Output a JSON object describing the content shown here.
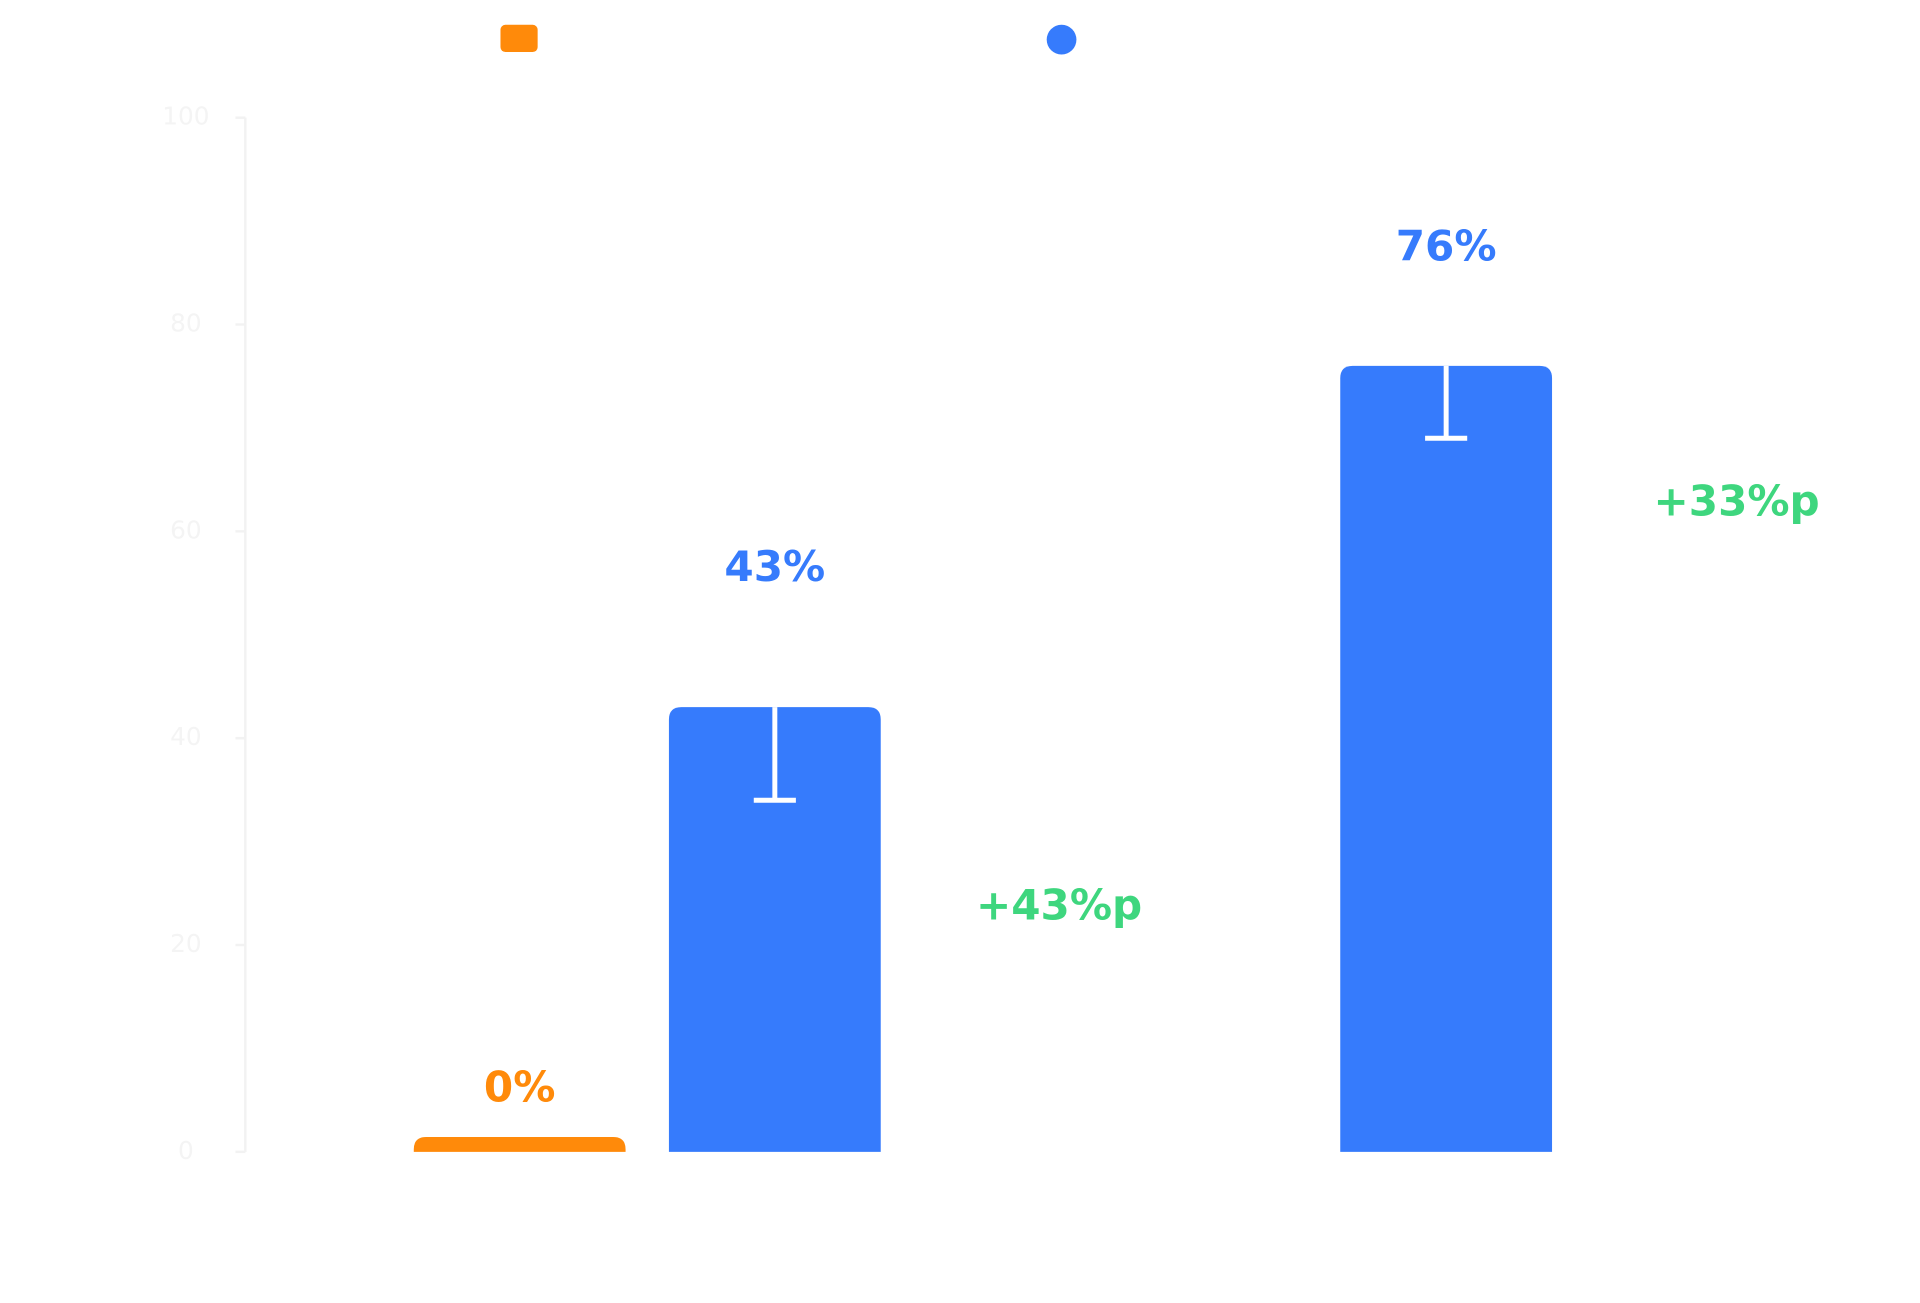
{
  "chart_data": {
    "type": "bar",
    "categories": [
      null,
      null
    ],
    "series": [
      {
        "color": "#ff8a0a",
        "values": [
          0,
          null
        ],
        "value_labels": [
          "0%",
          null
        ]
      },
      {
        "color": "#367bfc",
        "values": [
          43,
          76
        ],
        "value_labels": [
          "43%",
          "76%"
        ],
        "errors": [
          9,
          7
        ]
      }
    ],
    "annotations": [
      {
        "text": "+43%p",
        "color": "#3ed67e"
      },
      {
        "text": "+33%p",
        "color": "#3ed67e"
      }
    ],
    "ylim": [
      0,
      100
    ],
    "yticks": [
      0,
      20,
      40,
      60,
      80,
      100
    ]
  }
}
